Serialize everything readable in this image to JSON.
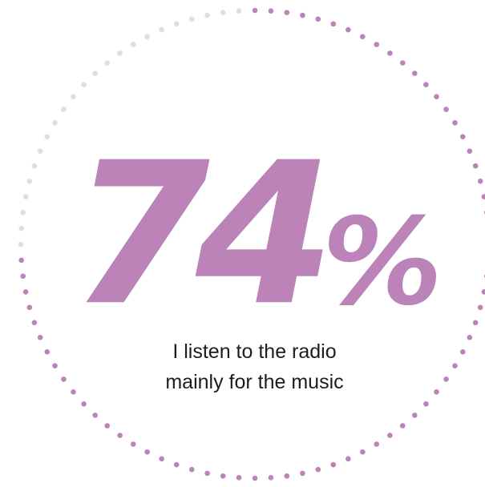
{
  "chart_data": {
    "type": "pie",
    "value": 74,
    "max": 100,
    "display_value": "74",
    "unit": "%",
    "caption_lines": [
      "I listen to the radio",
      "mainly for the music"
    ],
    "colors": {
      "filled": "#bb83b8",
      "empty": "#dedede",
      "text": "#1d1d1d"
    }
  }
}
